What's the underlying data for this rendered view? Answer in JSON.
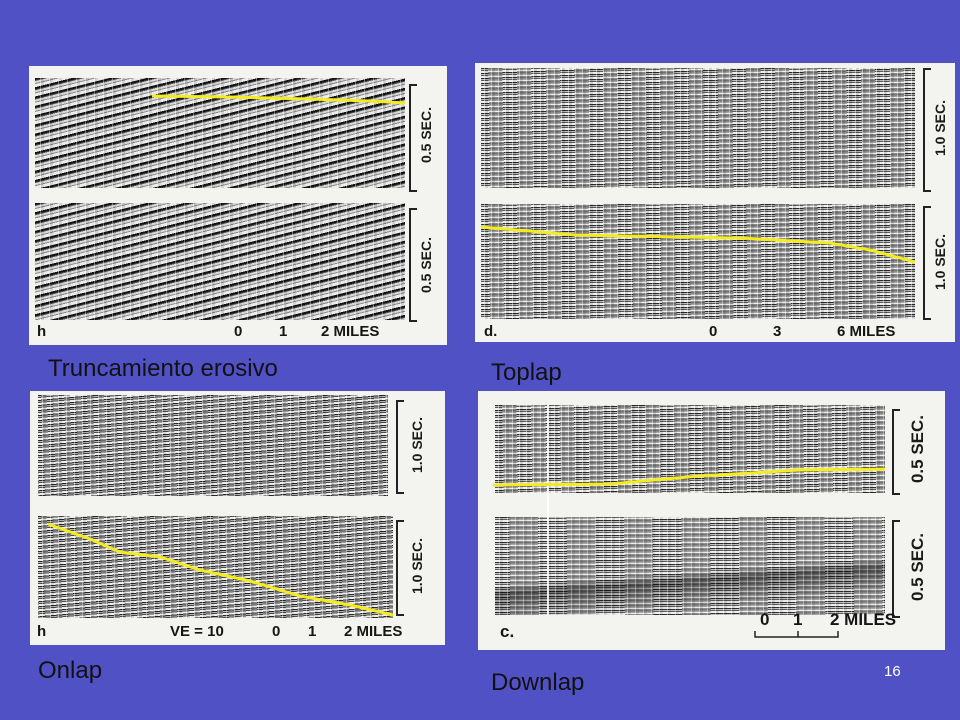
{
  "slide": {
    "page_number": "16",
    "background": "#5151C6",
    "horizon_color": "#F4EC1E"
  },
  "panels": [
    {
      "caption": "Truncamiento erosivo",
      "figure_letter": "h",
      "scale_upper": "0.5 SEC.",
      "scale_lower": "0.5 SEC.",
      "distance_ticks": [
        "0",
        "1",
        "2 MILES"
      ]
    },
    {
      "caption": "Toplap",
      "figure_letter": "d.",
      "scale_upper": "1.0 SEC.",
      "scale_lower": "1.0 SEC.",
      "distance_ticks": [
        "0",
        "3",
        "6 MILES"
      ]
    },
    {
      "caption": "Onlap",
      "figure_letter": "h",
      "vertical_exaggeration": "VE = 10",
      "scale_upper": "1.0 SEC.",
      "scale_lower": "1.0 SEC.",
      "distance_ticks": [
        "0",
        "1",
        "2 MILES"
      ]
    },
    {
      "caption": "Downlap",
      "figure_letter": "c.",
      "scale_upper": "0.5 SEC.",
      "scale_lower": "0.5 SEC.",
      "distance_ticks": [
        "0",
        "1",
        "2 MILES"
      ]
    }
  ]
}
